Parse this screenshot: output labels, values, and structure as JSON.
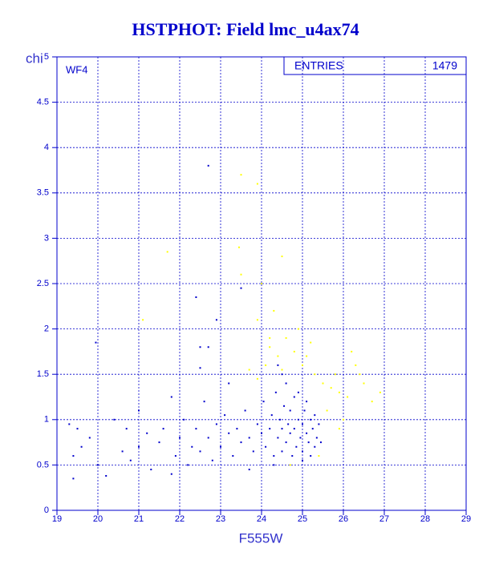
{
  "chart_data": {
    "type": "scatter",
    "title": "HSTPHOT: Field lmc_u4ax74",
    "x_label": "F555W",
    "y_label": "chi",
    "annotation": "WF4",
    "stats": {
      "label": "ENTRIES",
      "value": 1479
    },
    "xlim": [
      19,
      29
    ],
    "ylim": [
      0,
      5
    ],
    "xticks": [
      19,
      20,
      21,
      22,
      23,
      24,
      25,
      26,
      27,
      28,
      29
    ],
    "yticks": [
      0,
      0.5,
      1,
      1.5,
      2,
      2.5,
      3,
      3.5,
      4,
      4.5,
      5
    ],
    "grid": true,
    "axis_color": "#0000cc",
    "series": [
      {
        "color": "#ffff00",
        "x": [
          23.5,
          23.9,
          21.7,
          23.45,
          24.5,
          23.5,
          24.0,
          24.3,
          23.9,
          21.1,
          24.2,
          24.4,
          24.6,
          24.8,
          25.0,
          25.3,
          25.5,
          25.7,
          25.9,
          26.1,
          26.3,
          26.5,
          26.7,
          26.9,
          26.2,
          25.8,
          25.2,
          24.9,
          24.1,
          23.7,
          23.9,
          24.5,
          25.6,
          26.0,
          25.9,
          25.4,
          24.7,
          24.2,
          25.1,
          26.4
        ],
        "y": [
          3.7,
          3.6,
          2.85,
          2.9,
          2.8,
          2.6,
          2.5,
          2.2,
          2.1,
          2.1,
          1.8,
          1.7,
          1.9,
          1.75,
          1.6,
          1.5,
          1.4,
          1.35,
          1.3,
          1.25,
          1.6,
          1.4,
          1.2,
          1.3,
          1.75,
          1.5,
          1.85,
          2.0,
          1.6,
          1.55,
          1.45,
          1.55,
          1.1,
          1.0,
          0.9,
          0.6,
          0.5,
          1.9,
          1.7,
          1.5
        ]
      },
      {
        "color": "#0000cc",
        "x": [
          19.3,
          19.4,
          19.4,
          19.5,
          19.6,
          19.8,
          20.0,
          20.2,
          20.4,
          20.6,
          20.7,
          20.8,
          21.0,
          21.0,
          21.2,
          21.3,
          21.5,
          21.6,
          21.8,
          21.9,
          22.0,
          22.1,
          22.2,
          22.3,
          22.4,
          22.5,
          22.6,
          22.7,
          22.8,
          22.9,
          23.0,
          23.1,
          23.2,
          23.3,
          23.4,
          23.5,
          23.6,
          23.7,
          23.8,
          23.9,
          24.0,
          24.05,
          24.1,
          24.2,
          24.25,
          24.3,
          24.35,
          24.4,
          24.45,
          24.5,
          24.5,
          24.55,
          24.6,
          24.6,
          24.65,
          24.7,
          24.7,
          24.75,
          24.8,
          24.8,
          24.85,
          24.9,
          24.9,
          24.95,
          25.0,
          25.0,
          25.05,
          25.1,
          25.1,
          25.15,
          25.2,
          25.2,
          25.25,
          25.3,
          25.3,
          25.35,
          25.4,
          25.45,
          23.2,
          24.5,
          24.4,
          22.7,
          23.5,
          22.4,
          22.9,
          19.95,
          22.5,
          22.7,
          22.5,
          21.8,
          23.7,
          24.3,
          25.0
        ],
        "y": [
          0.95,
          0.6,
          0.35,
          0.9,
          0.7,
          0.8,
          0.5,
          0.38,
          1.0,
          0.65,
          0.9,
          0.55,
          1.1,
          0.7,
          0.85,
          0.45,
          0.75,
          0.9,
          1.25,
          0.6,
          0.8,
          1.0,
          0.5,
          0.7,
          0.9,
          0.65,
          1.2,
          0.8,
          0.55,
          0.95,
          0.7,
          1.05,
          0.85,
          0.6,
          0.9,
          0.75,
          1.1,
          0.8,
          0.65,
          0.95,
          0.85,
          1.2,
          0.7,
          0.9,
          1.05,
          0.6,
          1.3,
          0.8,
          1.0,
          0.9,
          0.65,
          1.15,
          0.75,
          1.4,
          0.95,
          0.85,
          1.1,
          0.6,
          1.25,
          0.9,
          0.7,
          1.0,
          1.3,
          0.8,
          0.95,
          0.65,
          1.1,
          0.85,
          1.2,
          0.75,
          1.0,
          0.6,
          0.9,
          1.05,
          0.7,
          0.8,
          0.95,
          0.75,
          1.4,
          1.5,
          1.6,
          3.8,
          2.45,
          2.35,
          2.1,
          1.85,
          1.8,
          1.8,
          1.57,
          0.4,
          0.45,
          0.5,
          0.55
        ]
      }
    ]
  }
}
